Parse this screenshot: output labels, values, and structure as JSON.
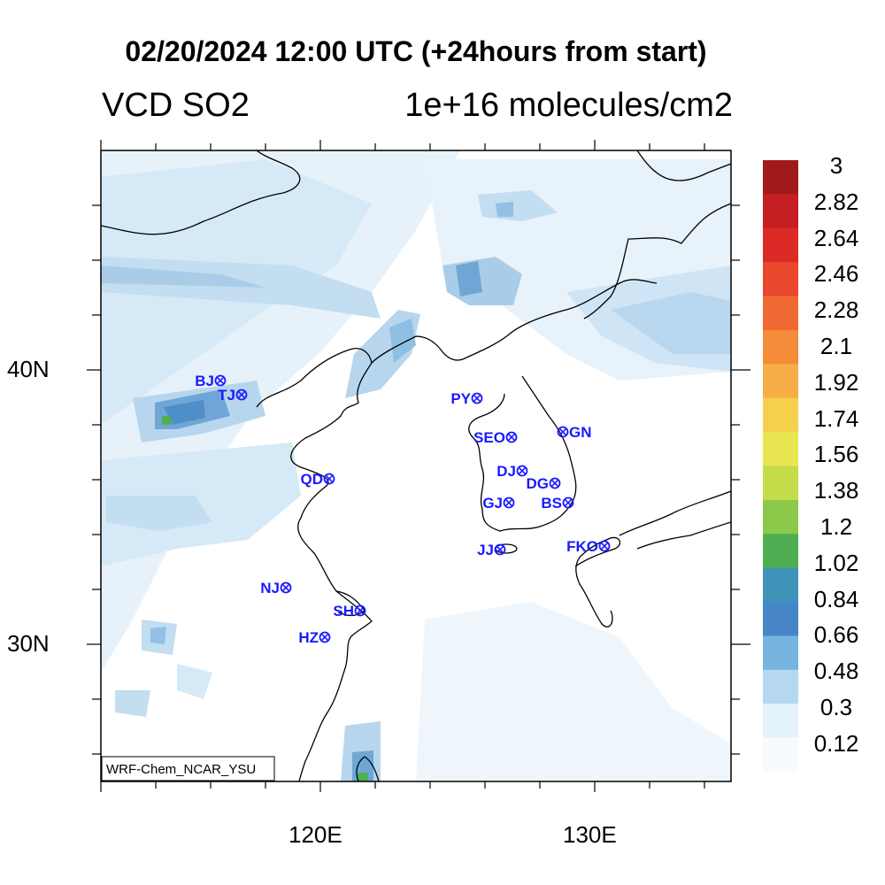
{
  "title": "02/20/2024 12:00 UTC (+24hours from start)",
  "subtitle_left": "VCD SO2",
  "subtitle_right": "1e+16 molecules/cm2",
  "model_label": "WRF-Chem_NCAR_YSU",
  "axes": {
    "lat_labels": [
      "40N",
      "30N"
    ],
    "lon_labels": [
      "120E",
      "130E"
    ]
  },
  "colorbar": {
    "labels": [
      "3",
      "2.82",
      "2.64",
      "2.46",
      "2.28",
      "2.1",
      "1.92",
      "1.74",
      "1.56",
      "1.38",
      "1.2",
      "1.02",
      "0.84",
      "0.66",
      "0.48",
      "0.3",
      "0.12"
    ],
    "colors": [
      "#a01a1a",
      "#c41f22",
      "#dc2a26",
      "#e8482c",
      "#ef6a32",
      "#f58c3a",
      "#f7ae48",
      "#f4d04c",
      "#e9e653",
      "#c6dc4a",
      "#8cc84a",
      "#4fae52",
      "#3f93b8",
      "#4685c6",
      "#78b4e0",
      "#b5d8f0",
      "#e4f2fb",
      "#f7fbfe"
    ]
  },
  "stations": [
    {
      "code": "BJ"
    },
    {
      "code": "TJ"
    },
    {
      "code": "PY"
    },
    {
      "code": "SEO"
    },
    {
      "code": "GN"
    },
    {
      "code": "QD"
    },
    {
      "code": "DJ"
    },
    {
      "code": "DG"
    },
    {
      "code": "GJ"
    },
    {
      "code": "BS"
    },
    {
      "code": "JJ"
    },
    {
      "code": "FKO"
    },
    {
      "code": "NJ"
    },
    {
      "code": "SH"
    },
    {
      "code": "HZ"
    }
  ]
}
